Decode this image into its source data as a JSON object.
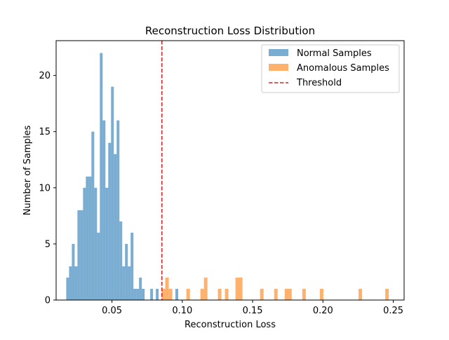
{
  "chart_data": {
    "type": "bar",
    "title": "Reconstruction Loss Distribution",
    "xlabel": "Reconstruction Loss",
    "ylabel": "Number of Samples",
    "xlim": [
      0.0103,
      0.2577
    ],
    "ylim": [
      0,
      23.1
    ],
    "x_ticks": [
      {
        "value": 0.05,
        "label": "0.05"
      },
      {
        "value": 0.1,
        "label": "0.10"
      },
      {
        "value": 0.15,
        "label": "0.15"
      },
      {
        "value": 0.2,
        "label": "0.20"
      },
      {
        "value": 0.25,
        "label": "0.25"
      }
    ],
    "y_ticks": [
      {
        "value": 0,
        "label": "0"
      },
      {
        "value": 5,
        "label": "5"
      },
      {
        "value": 10,
        "label": "10"
      },
      {
        "value": 15,
        "label": "15"
      },
      {
        "value": 20,
        "label": "20"
      }
    ],
    "grid": false,
    "legend": {
      "location": "upper right"
    },
    "series": [
      {
        "name": "Normal Samples",
        "kind": "histogram",
        "color": "#1f77b4",
        "alpha": 0.6,
        "bin_start": 0.0175,
        "bin_width": 0.00199,
        "counts": [
          2,
          3,
          5,
          3,
          8,
          8,
          10,
          11,
          11,
          15,
          10,
          6,
          22,
          16,
          10,
          14,
          19,
          13,
          16,
          7,
          3,
          5,
          3,
          6,
          1,
          1,
          2,
          1,
          0,
          0,
          1,
          0,
          1,
          0,
          0,
          0,
          0,
          0,
          0,
          1
        ]
      },
      {
        "name": "Anomalous Samples",
        "kind": "histogram",
        "color": "#ff7f0e",
        "alpha": 0.6,
        "bars": [
          {
            "x0": 0.0854,
            "x1": 0.0879,
            "count": 1
          },
          {
            "x0": 0.0879,
            "x1": 0.0904,
            "count": 2
          },
          {
            "x0": 0.0904,
            "x1": 0.0929,
            "count": 1
          },
          {
            "x0": 0.1029,
            "x1": 0.1054,
            "count": 1
          },
          {
            "x0": 0.1129,
            "x1": 0.1154,
            "count": 1
          },
          {
            "x0": 0.1154,
            "x1": 0.1179,
            "count": 2
          },
          {
            "x0": 0.1253,
            "x1": 0.1278,
            "count": 1
          },
          {
            "x0": 0.1303,
            "x1": 0.1328,
            "count": 1
          },
          {
            "x0": 0.1378,
            "x1": 0.1428,
            "count": 2
          },
          {
            "x0": 0.1553,
            "x1": 0.1578,
            "count": 1
          },
          {
            "x0": 0.1653,
            "x1": 0.1678,
            "count": 1
          },
          {
            "x0": 0.1728,
            "x1": 0.1778,
            "count": 1
          },
          {
            "x0": 0.1853,
            "x1": 0.1878,
            "count": 1
          },
          {
            "x0": 0.1978,
            "x1": 0.2003,
            "count": 1
          },
          {
            "x0": 0.2253,
            "x1": 0.2278,
            "count": 1
          },
          {
            "x0": 0.2443,
            "x1": 0.2468,
            "count": 1
          }
        ]
      },
      {
        "name": "Threshold",
        "kind": "vline",
        "x": 0.0855,
        "color": "#d62728",
        "linestyle": "dashed"
      }
    ]
  }
}
